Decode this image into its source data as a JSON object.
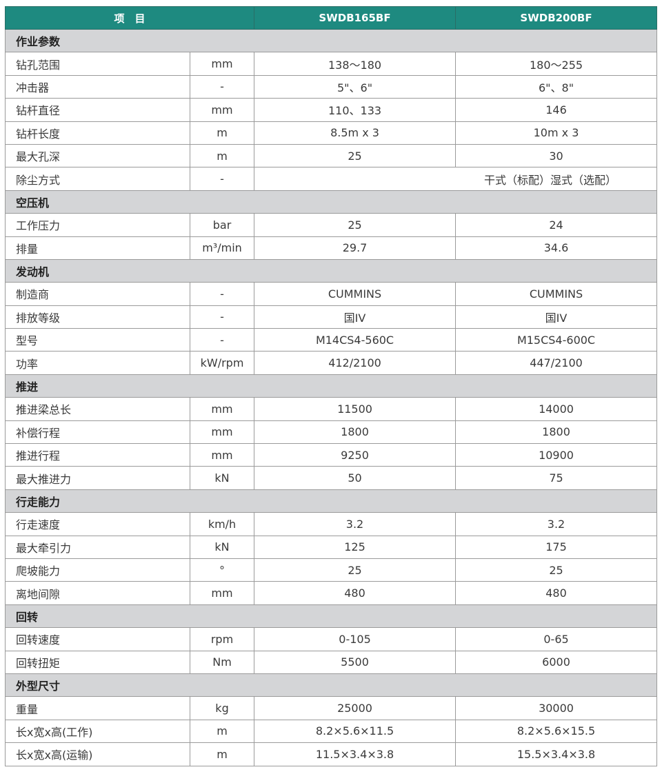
{
  "header": {
    "item": "项　目",
    "model_a": "SWDB165BF",
    "model_b": "SWDB200BF"
  },
  "colors": {
    "header_bg": "#1e8a80",
    "section_bg": "#d4d5d7"
  },
  "sections": [
    {
      "title": "作业参数",
      "rows": [
        {
          "name": "钻孔范围",
          "unit": "mm",
          "a": "138～180",
          "b": "180～255"
        },
        {
          "name": "冲击器",
          "unit": "-",
          "a": "5\"、6\"",
          "b": "6\"、8\""
        },
        {
          "name": "钻杆直径",
          "unit": "mm",
          "a": "110、133",
          "b": "146"
        },
        {
          "name": "钻杆长度",
          "unit": "m",
          "a": "8.5m x 3",
          "b": "10m x 3"
        },
        {
          "name": "最大孔深",
          "unit": "m",
          "a": "25",
          "b": "30"
        },
        {
          "name": "除尘方式",
          "unit": "-",
          "merged": "干式（标配）湿式（选配）"
        }
      ]
    },
    {
      "title": "空压机",
      "rows": [
        {
          "name": "工作压力",
          "unit": "bar",
          "a": "25",
          "b": "24"
        },
        {
          "name": "排量",
          "unit": "m³/min",
          "a": "29.7",
          "b": "34.6"
        }
      ]
    },
    {
      "title": "发动机",
      "rows": [
        {
          "name": "制造商",
          "unit": "-",
          "a": "CUMMINS",
          "b": "CUMMINS"
        },
        {
          "name": "排放等级",
          "unit": "-",
          "a": "国IV",
          "b": "国IV"
        },
        {
          "name": "型号",
          "unit": "-",
          "a": "M14CS4-560C",
          "b": "M15CS4-600C"
        },
        {
          "name": "功率",
          "unit": "kW/rpm",
          "a": "412/2100",
          "b": "447/2100"
        }
      ]
    },
    {
      "title": "推进",
      "rows": [
        {
          "name": "推进梁总长",
          "unit": "mm",
          "a": "11500",
          "b": "14000"
        },
        {
          "name": "补偿行程",
          "unit": "mm",
          "a": "1800",
          "b": "1800"
        },
        {
          "name": "推进行程",
          "unit": "mm",
          "a": "9250",
          "b": "10900"
        },
        {
          "name": "最大推进力",
          "unit": "kN",
          "a": "50",
          "b": "75"
        }
      ]
    },
    {
      "title": "行走能力",
      "rows": [
        {
          "name": "行走速度",
          "unit": "km/h",
          "a": "3.2",
          "b": "3.2"
        },
        {
          "name": "最大牵引力",
          "unit": "kN",
          "a": "125",
          "b": "175"
        },
        {
          "name": "爬坡能力",
          "unit": "°",
          "a": "25",
          "b": "25"
        },
        {
          "name": "离地间隙",
          "unit": "mm",
          "a": "480",
          "b": "480"
        }
      ]
    },
    {
      "title": "回转",
      "rows": [
        {
          "name": "回转速度",
          "unit": "rpm",
          "a": "0-105",
          "b": "0-65"
        },
        {
          "name": "回转扭矩",
          "unit": "Nm",
          "a": "5500",
          "b": "6000"
        }
      ]
    },
    {
      "title": "外型尺寸",
      "rows": [
        {
          "name": "重量",
          "unit": "kg",
          "a": "25000",
          "b": "30000"
        },
        {
          "name": "长x宽x高(工作)",
          "unit": "m",
          "a": "8.2×5.6×11.5",
          "b": "8.2×5.6×15.5"
        },
        {
          "name": "长x宽x高(运输)",
          "unit": "m",
          "a": "11.5×3.4×3.8",
          "b": "15.5×3.4×3.8"
        }
      ]
    }
  ]
}
